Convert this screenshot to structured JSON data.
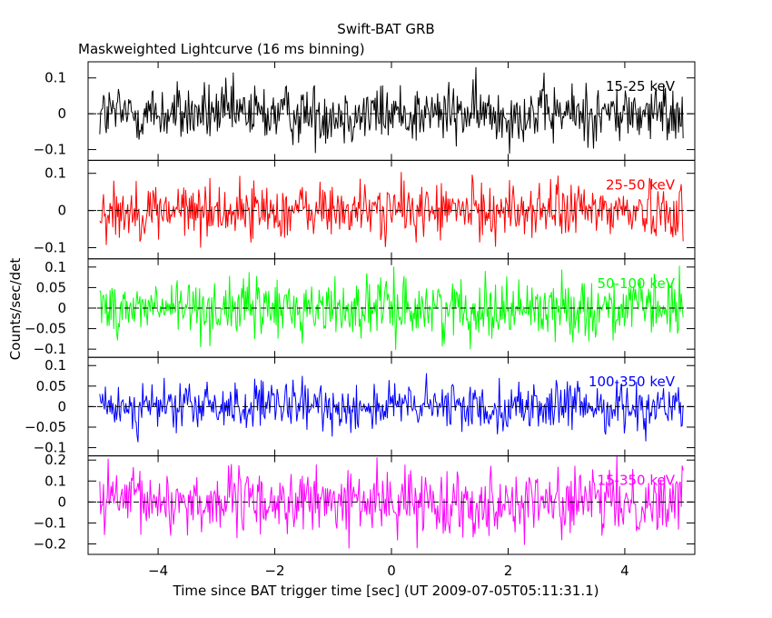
{
  "chart_data": {
    "type": "line",
    "title": "Swift-BAT GRB",
    "subtitle": "Maskweighted Lightcurve (16 ms binning)",
    "xlabel": "Time since BAT trigger time [sec] (UT 2009-07-05T05:11:31.1)",
    "ylabel": "Counts/sec/det",
    "xlim": [
      -5.2,
      5.2
    ],
    "x_ticks": [
      -4,
      -2,
      0,
      2,
      4
    ],
    "x_tick_labels": [
      "−4",
      "−2",
      "0",
      "2",
      "4"
    ],
    "binning_sec": 0.016,
    "x_range_data": [
      -5.0,
      5.0
    ],
    "zero_line": "dashed",
    "panels": [
      {
        "name": "15-25 keV",
        "color": "#000000",
        "ylim": [
          -0.13,
          0.145
        ],
        "y_ticks": [
          -0.1,
          0,
          0.1
        ],
        "y_tick_labels": [
          "−0.1",
          "0",
          "0.1"
        ],
        "noise_amplitude": 0.1
      },
      {
        "name": "25-50 keV",
        "color": "#ff0000",
        "ylim": [
          -0.13,
          0.135
        ],
        "y_ticks": [
          -0.1,
          0,
          0.1
        ],
        "y_tick_labels": [
          "−0.1",
          "0",
          "0.1"
        ],
        "noise_amplitude": 0.09
      },
      {
        "name": "50-100 keV",
        "color": "#00ff00",
        "ylim": [
          -0.12,
          0.12
        ],
        "y_ticks": [
          -0.1,
          -0.05,
          0,
          0.05,
          0.1
        ],
        "y_tick_labels": [
          "−0.1",
          "−0.05",
          "0",
          "0.05",
          "0.1"
        ],
        "noise_amplitude": 0.085
      },
      {
        "name": "100-350 keV",
        "color": "#0000ff",
        "ylim": [
          -0.12,
          0.12
        ],
        "y_ticks": [
          -0.1,
          -0.05,
          0,
          0.05,
          0.1
        ],
        "y_tick_labels": [
          "−0.1",
          "−0.05",
          "0",
          "0.05",
          "0.1"
        ],
        "noise_amplitude": 0.07
      },
      {
        "name": "15-350 keV",
        "color": "#ff00ff",
        "ylim": [
          -0.25,
          0.22
        ],
        "y_ticks": [
          -0.2,
          -0.1,
          0,
          0.1,
          0.2
        ],
        "y_tick_labels": [
          "−0.2",
          "−0.1",
          "0",
          "0.1",
          "0.2"
        ],
        "noise_amplitude": 0.18
      }
    ]
  }
}
